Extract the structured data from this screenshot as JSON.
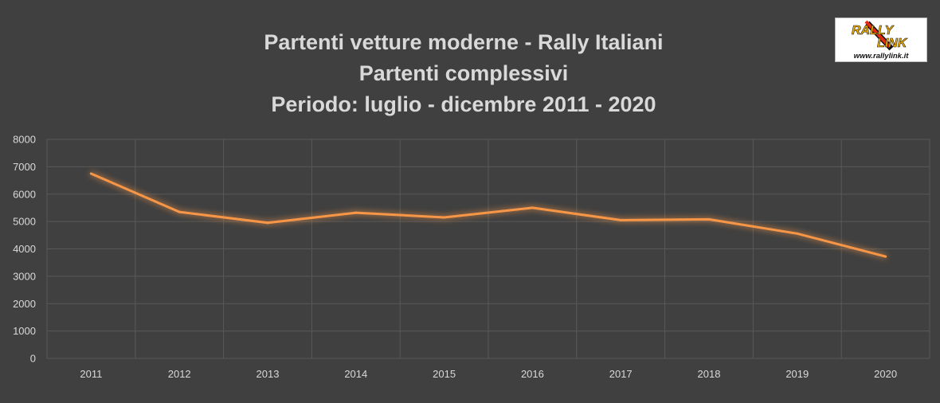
{
  "chart_data": {
    "type": "line",
    "title_lines": [
      "Partenti vetture moderne - Rally Italiani",
      "Partenti complessivi",
      "Periodo: luglio - dicembre 2011 - 2020"
    ],
    "categories": [
      "2011",
      "2012",
      "2013",
      "2014",
      "2015",
      "2016",
      "2017",
      "2018",
      "2019",
      "2020"
    ],
    "series": [
      {
        "values": [
          6750,
          5350,
          4950,
          5320,
          5150,
          5500,
          5050,
          5080,
          4560,
          3720
        ]
      }
    ],
    "ylim": [
      0,
      8000
    ],
    "yticks": [
      "0",
      "1000",
      "2000",
      "3000",
      "4000",
      "5000",
      "6000",
      "7000",
      "8000"
    ],
    "grid": true,
    "line_color": "#f79646",
    "background_color": "#404040",
    "grid_color": "#595959",
    "text_color": "#d9d9d9"
  },
  "logo": {
    "brand_top": "RALLY",
    "brand_bottom": "LINK",
    "url": "www.rallylink.it"
  }
}
